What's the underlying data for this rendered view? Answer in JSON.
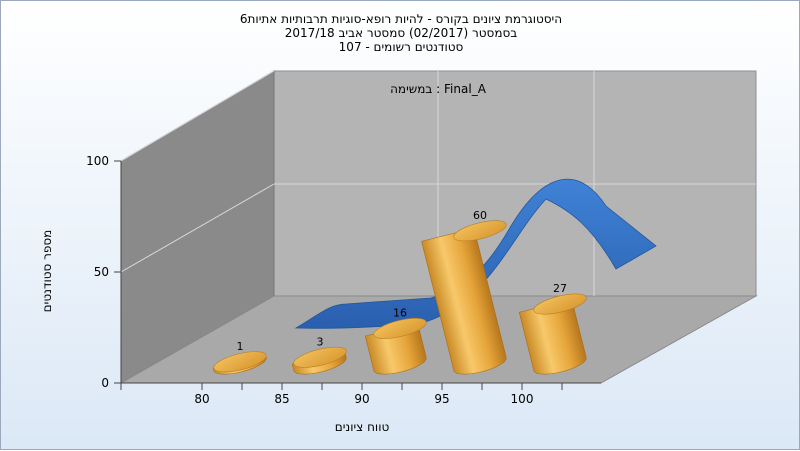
{
  "chart_data": {
    "type": "bar",
    "title_lines": [
      "היסטוגרמת ציונים בקורס - להיות רופא-סוגיות תרבותיות אתיות6",
      "בסמסטר  (02/2017)  סמסטר אביב 2017/18",
      "סטודנטים רשומים - 107"
    ],
    "legend_label": "במשימה : Final_A",
    "xlabel": "טווח ציונים",
    "ylabel": "מספר סטודנטים",
    "x_ticks": [
      "80",
      "85",
      "90",
      "95",
      "100"
    ],
    "y_ticks": [
      "0",
      "50",
      "100"
    ],
    "ylim": [
      0,
      100
    ],
    "categories": [
      "80-85",
      "85-90",
      "90-95",
      "95-100",
      "100"
    ],
    "values": [
      1,
      3,
      16,
      60,
      27
    ],
    "data_labels": [
      "1",
      "3",
      "16",
      "60",
      "27"
    ],
    "curve": "normal-distribution",
    "colors": {
      "bar": "#e6a53a",
      "bar_dark": "#b7771c",
      "curve": "#2f6fc4",
      "back_wall": "#b4b4b4",
      "side_wall": "#8a8a8a",
      "floor": "#a9a9a9"
    }
  }
}
